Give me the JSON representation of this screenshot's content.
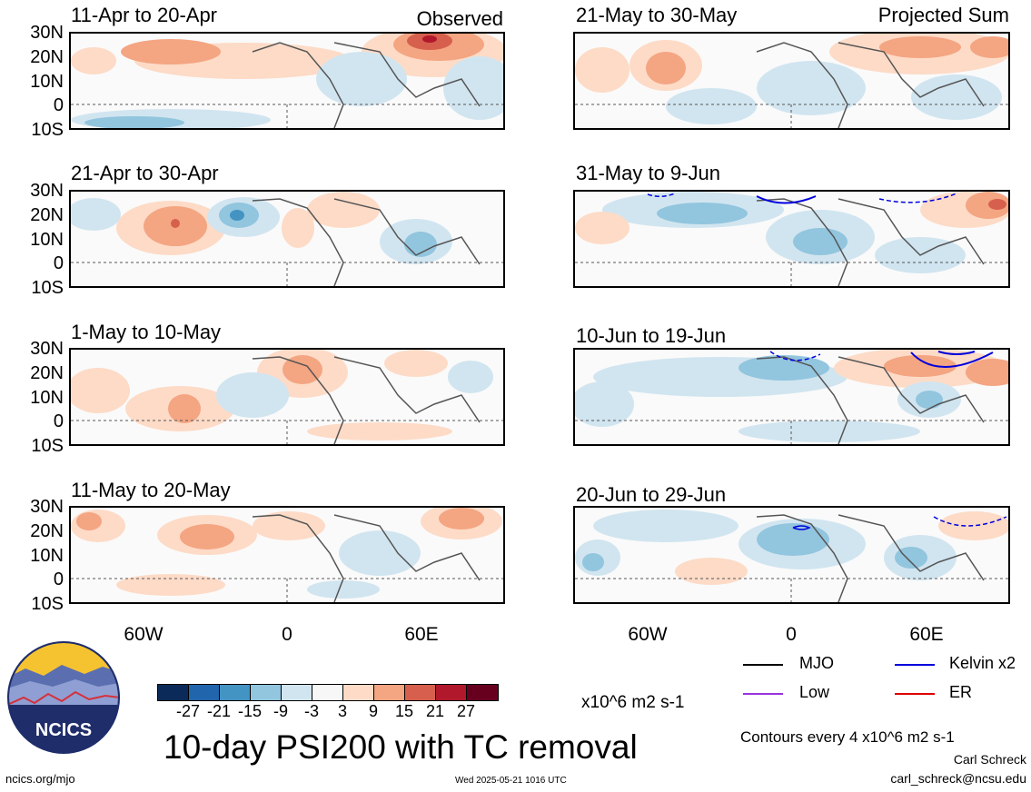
{
  "panels": [
    {
      "title": "11-Apr to 20-Apr",
      "tag": "Observed"
    },
    {
      "title": "21-May to 30-May",
      "tag": "Projected Sum"
    },
    {
      "title": "21-Apr to 30-Apr",
      "tag": ""
    },
    {
      "title": "31-May to 9-Jun",
      "tag": ""
    },
    {
      "title": "1-May to 10-May",
      "tag": ""
    },
    {
      "title": "10-Jun to 19-Jun",
      "tag": ""
    },
    {
      "title": "11-May to 20-May",
      "tag": ""
    },
    {
      "title": "20-Jun to 29-Jun",
      "tag": ""
    }
  ],
  "lat_labels": [
    "30N",
    "20N",
    "10N",
    "0",
    "10S"
  ],
  "lon_labels": [
    "60W",
    "0",
    "60E"
  ],
  "colorbar": {
    "labels": [
      "-27",
      "-21",
      "-15",
      "-9",
      "-3",
      "3",
      "9",
      "15",
      "21",
      "27"
    ],
    "colors": [
      "#0b2a59",
      "#2166ac",
      "#4393c3",
      "#92c5de",
      "#d1e5f0",
      "#f7f7f7",
      "#fddbc7",
      "#f4a582",
      "#d6604d",
      "#b2182b",
      "#67001f"
    ],
    "units": "x10^6 m2 s-1"
  },
  "title": "10-day PSI200 with TC removal",
  "legend": {
    "items": [
      {
        "label": "MJO",
        "color": "#000000"
      },
      {
        "label": "Kelvin x2",
        "color": "#0000dd"
      },
      {
        "label": "Low",
        "color": "#9933dd"
      },
      {
        "label": "ER",
        "color": "#dd0000"
      }
    ],
    "contours": "Contours every 4 x10^6 m2 s-1"
  },
  "logo": {
    "text": "NCICS"
  },
  "footer": {
    "url": "ncics.org/mjo",
    "timestamp": "Wed 2025-05-21 1016 UTC",
    "author": "Carl Schreck",
    "email": "carl_schreck@ncsu.edu"
  }
}
